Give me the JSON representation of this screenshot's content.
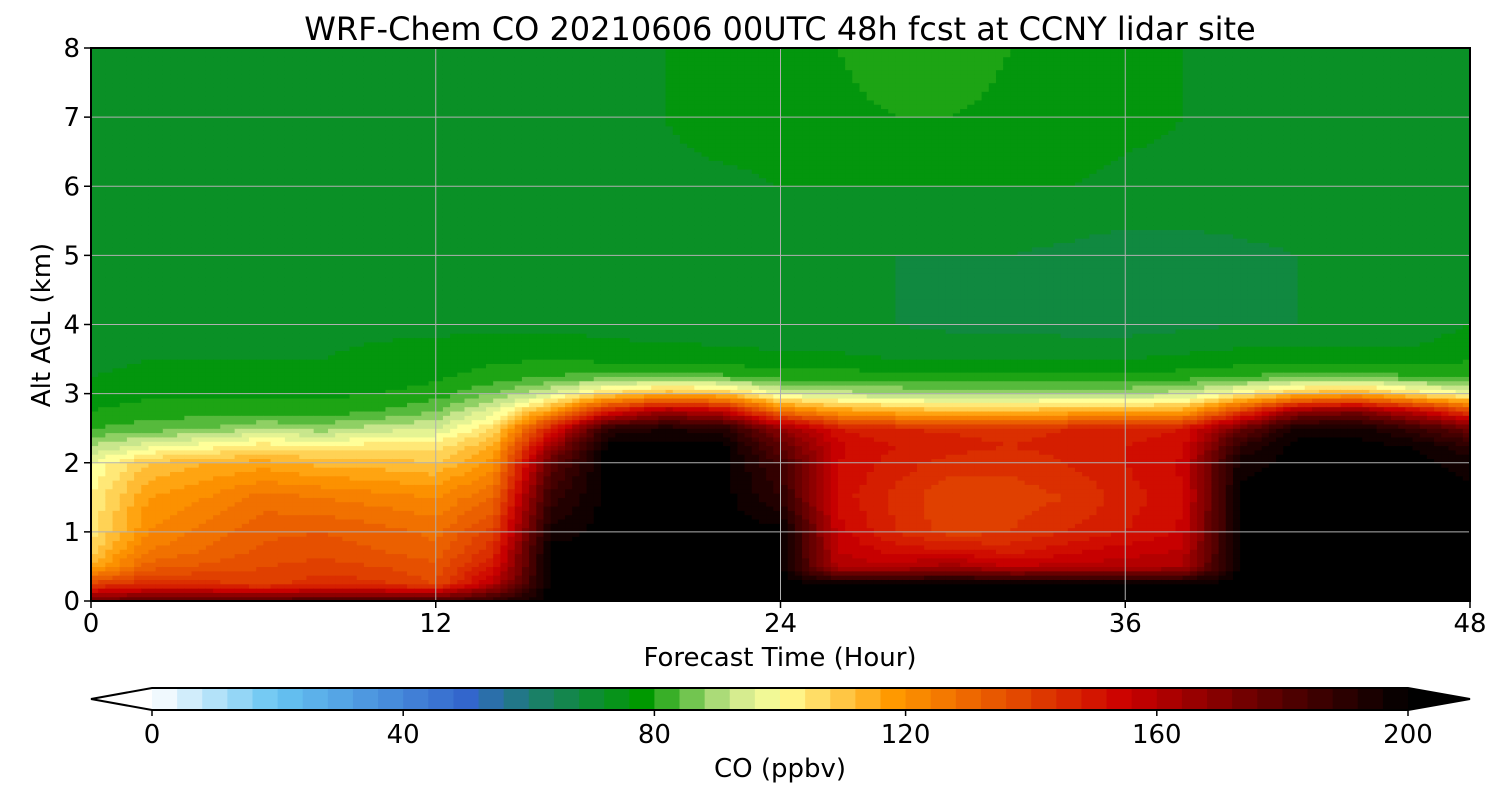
{
  "chart_data": {
    "type": "heatmap",
    "title": "WRF-Chem CO  20210606 00UTC 48h fcst at CCNY lidar site",
    "xlabel": "Forecast Time (Hour)",
    "ylabel": "Alt AGL (km)",
    "xlim": [
      0,
      48
    ],
    "ylim": [
      0,
      8
    ],
    "xticks": [
      0,
      12,
      24,
      36,
      48
    ],
    "yticks": [
      0,
      1,
      2,
      3,
      4,
      5,
      6,
      7,
      8
    ],
    "grid": true,
    "colorbar": {
      "label": "CO  (ppbv)",
      "min": 0,
      "max": 200,
      "ticks": [
        0,
        40,
        80,
        120,
        160,
        200
      ],
      "extend": "both",
      "orientation": "horizontal",
      "placement": "bottom",
      "stops": [
        {
          "value": 0,
          "color": "#ffffff"
        },
        {
          "value": 20,
          "color": "#66c4f2"
        },
        {
          "value": 50,
          "color": "#3366cc"
        },
        {
          "value": 62,
          "color": "#1a8066"
        },
        {
          "value": 78,
          "color": "#009900"
        },
        {
          "value": 92,
          "color": "#c8e68c"
        },
        {
          "value": 100,
          "color": "#ffff99"
        },
        {
          "value": 118,
          "color": "#ff9900"
        },
        {
          "value": 140,
          "color": "#e04000"
        },
        {
          "value": 155,
          "color": "#cc0000"
        },
        {
          "value": 180,
          "color": "#550000"
        },
        {
          "value": 200,
          "color": "#000000"
        }
      ]
    },
    "x": [
      0,
      2,
      4,
      6,
      8,
      10,
      12,
      14,
      16,
      18,
      20,
      22,
      24,
      26,
      28,
      30,
      32,
      34,
      36,
      38,
      40,
      42,
      44,
      46,
      48
    ],
    "y": [
      0,
      0.25,
      0.5,
      0.75,
      1,
      1.5,
      2,
      2.25,
      2.5,
      2.75,
      3,
      3.25,
      3.5,
      4,
      5,
      6,
      7,
      8
    ],
    "z": [
      [
        175,
        182,
        182,
        182,
        184,
        184,
        184,
        190,
        200,
        200,
        200,
        200,
        200,
        200,
        200,
        200,
        200,
        200,
        200,
        200,
        200,
        200,
        200,
        200,
        200
      ],
      [
        140,
        145,
        144,
        140,
        145,
        143,
        138,
        160,
        200,
        200,
        200,
        200,
        200,
        200,
        200,
        200,
        200,
        200,
        200,
        200,
        200,
        200,
        200,
        200,
        200
      ],
      [
        115,
        132,
        135,
        138,
        140,
        138,
        135,
        150,
        200,
        200,
        200,
        200,
        200,
        160,
        160,
        165,
        158,
        160,
        160,
        162,
        200,
        200,
        200,
        200,
        200
      ],
      [
        108,
        126,
        130,
        135,
        136,
        134,
        131,
        145,
        200,
        200,
        200,
        200,
        200,
        158,
        152,
        150,
        148,
        152,
        156,
        158,
        200,
        200,
        200,
        200,
        200
      ],
      [
        104,
        122,
        128,
        133,
        134,
        132,
        129,
        140,
        195,
        200,
        200,
        200,
        200,
        156,
        146,
        140,
        142,
        146,
        150,
        155,
        200,
        200,
        200,
        200,
        200
      ],
      [
        102,
        118,
        122,
        128,
        126,
        124,
        122,
        130,
        188,
        200,
        200,
        200,
        190,
        152,
        145,
        138,
        140,
        142,
        148,
        153,
        200,
        200,
        200,
        200,
        200
      ],
      [
        98,
        110,
        114,
        116,
        113,
        112,
        110,
        120,
        178,
        200,
        200,
        200,
        185,
        154,
        148,
        144,
        143,
        146,
        150,
        155,
        196,
        200,
        200,
        200,
        196
      ],
      [
        90,
        96,
        100,
        104,
        102,
        104,
        104,
        114,
        165,
        200,
        200,
        200,
        178,
        155,
        150,
        148,
        146,
        148,
        150,
        152,
        190,
        200,
        200,
        198,
        190
      ],
      [
        82,
        84,
        86,
        90,
        88,
        92,
        94,
        106,
        148,
        190,
        194,
        192,
        168,
        150,
        146,
        145,
        144,
        146,
        148,
        150,
        175,
        196,
        196,
        188,
        175
      ],
      [
        78,
        80,
        80,
        80,
        80,
        82,
        86,
        96,
        118,
        150,
        165,
        158,
        128,
        118,
        114,
        112,
        112,
        114,
        114,
        116,
        140,
        168,
        172,
        158,
        140
      ],
      [
        76,
        77,
        77,
        77,
        77,
        78,
        80,
        86,
        94,
        108,
        114,
        112,
        96,
        92,
        90,
        88,
        88,
        90,
        90,
        92,
        102,
        112,
        116,
        106,
        98
      ],
      [
        74,
        75,
        75,
        75,
        75,
        76,
        77,
        80,
        82,
        84,
        84,
        83,
        80,
        80,
        80,
        79,
        79,
        79,
        79,
        80,
        82,
        84,
        85,
        82,
        80
      ],
      [
        73,
        74,
        74,
        74,
        74,
        75,
        76,
        77,
        78,
        77,
        76,
        76,
        75,
        75,
        74,
        74,
        74,
        74,
        74,
        75,
        76,
        77,
        77,
        76,
        78
      ],
      [
        72,
        73,
        73,
        73,
        73,
        73,
        73,
        73,
        73,
        72,
        72,
        71,
        71,
        70,
        70,
        69,
        69,
        68,
        68,
        69,
        70,
        70,
        70,
        71,
        74
      ],
      [
        72,
        72,
        72,
        72,
        72,
        72,
        72,
        72,
        72,
        72,
        72,
        72,
        71,
        71,
        70,
        70,
        70,
        69,
        68,
        68,
        69,
        70,
        71,
        72,
        74
      ],
      [
        72,
        72,
        72,
        72,
        72,
        72,
        72,
        73,
        73,
        73,
        73,
        73,
        74,
        74,
        74,
        74,
        74,
        74,
        73,
        73,
        73,
        73,
        73,
        73,
        73
      ],
      [
        72,
        72,
        72,
        72,
        72,
        72,
        72,
        72,
        73,
        74,
        74,
        76,
        76,
        77,
        78,
        78,
        77,
        76,
        75,
        74,
        74,
        73,
        73,
        73,
        72
      ],
      [
        72,
        72,
        72,
        72,
        72,
        72,
        72,
        72,
        72,
        73,
        74,
        75,
        76,
        78,
        80,
        80,
        78,
        76,
        75,
        74,
        73,
        73,
        73,
        72,
        72
      ]
    ]
  }
}
